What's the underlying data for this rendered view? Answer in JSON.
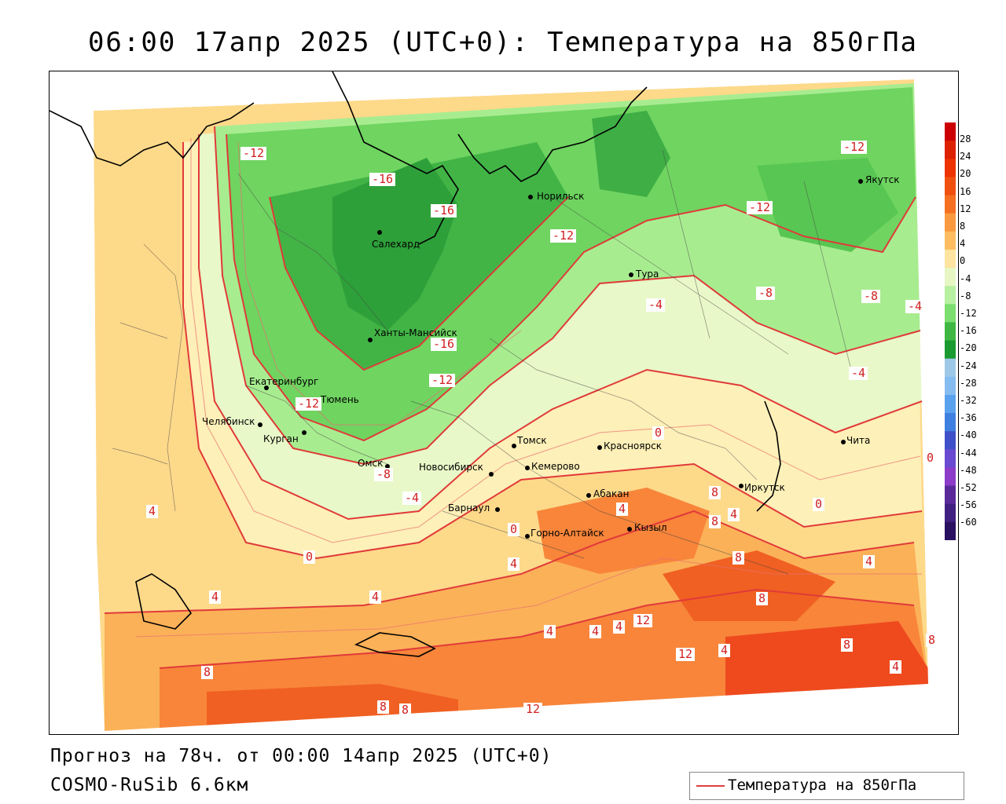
{
  "title": "06:00 17апр 2025 (UTC+0): Температура на 850гПа",
  "footer": {
    "forecast": "Прогноз на 78ч. от 00:00 14апр 2025 (UTC+0)",
    "model": "COSMO-RuSib 6.6км"
  },
  "legend": {
    "label": "Температура на 850гПа",
    "line_color": "#e04040"
  },
  "scale": {
    "ticks": [
      "28",
      "24",
      "20",
      "16",
      "12",
      "8",
      "4",
      "0",
      "-4",
      "-8",
      "-12",
      "-16",
      "-20",
      "-24",
      "-28",
      "-32",
      "-36",
      "-40",
      "-44",
      "-48",
      "-52",
      "-56",
      "-60"
    ],
    "colors": [
      "#cc0000",
      "#dd2200",
      "#ee3300",
      "#f05010",
      "#f57020",
      "#fa9a40",
      "#fdbd60",
      "#fde4a0",
      "#e6f7c4",
      "#b6f0a0",
      "#7bde6e",
      "#3fb843",
      "#1a9a30",
      "#9ec8e8",
      "#86bdf0",
      "#5aa2ee",
      "#3f7fe0",
      "#4050c8",
      "#6a4ad0",
      "#8c3cc8",
      "#5a2a9a",
      "#402080",
      "#2a1060"
    ]
  },
  "cities": [
    {
      "name": "Салехард"
    },
    {
      "name": "Норильск"
    },
    {
      "name": "Якутск"
    },
    {
      "name": "Тура"
    },
    {
      "name": "Ханты-Мансийск"
    },
    {
      "name": "Екатеринбург"
    },
    {
      "name": "Тюмень"
    },
    {
      "name": "Челябинск"
    },
    {
      "name": "Курган"
    },
    {
      "name": "Омск"
    },
    {
      "name": "Новосибирск"
    },
    {
      "name": "Томск"
    },
    {
      "name": "Кемерово"
    },
    {
      "name": "Красноярск"
    },
    {
      "name": "Барнаул"
    },
    {
      "name": "Абакан"
    },
    {
      "name": "Горно-Алтайск"
    },
    {
      "name": "Кызыл"
    },
    {
      "name": "Иркутск"
    },
    {
      "name": "Чита"
    }
  ],
  "contour_labels": [
    "-12",
    "-16",
    "-16",
    "-12",
    "-12",
    "-12",
    "-16",
    "-12",
    "-12",
    "-8",
    "-8",
    "-4",
    "-4",
    "-4",
    "-4",
    "-8",
    "0",
    "0",
    "0",
    "0",
    "0",
    "4",
    "4",
    "4",
    "4",
    "4",
    "4",
    "4",
    "4",
    "4",
    "4",
    "8",
    "8",
    "8",
    "8",
    "8",
    "8",
    "8",
    "8",
    "12",
    "12",
    "12",
    "4",
    "4",
    "8"
  ]
}
